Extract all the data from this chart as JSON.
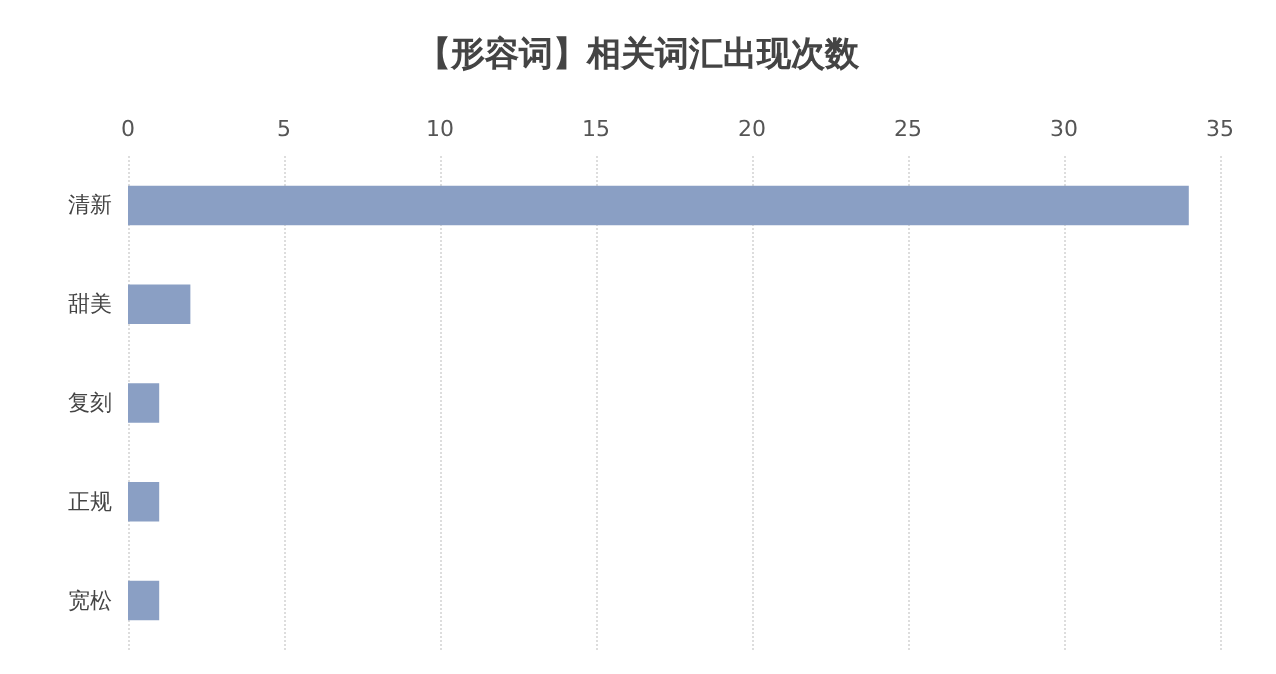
{
  "chart_data": {
    "type": "bar",
    "title": "【形容词】相关词汇出现次数",
    "orientation": "horizontal",
    "categories": [
      "清新",
      "甜美",
      "复刻",
      "正规",
      "宽松"
    ],
    "values": [
      34,
      2,
      1,
      1,
      1
    ],
    "color": "#8a9fc4",
    "xlim": [
      0,
      35
    ],
    "xticks": [
      0,
      5,
      10,
      15,
      20,
      25,
      30,
      35
    ],
    "grid": "x"
  }
}
